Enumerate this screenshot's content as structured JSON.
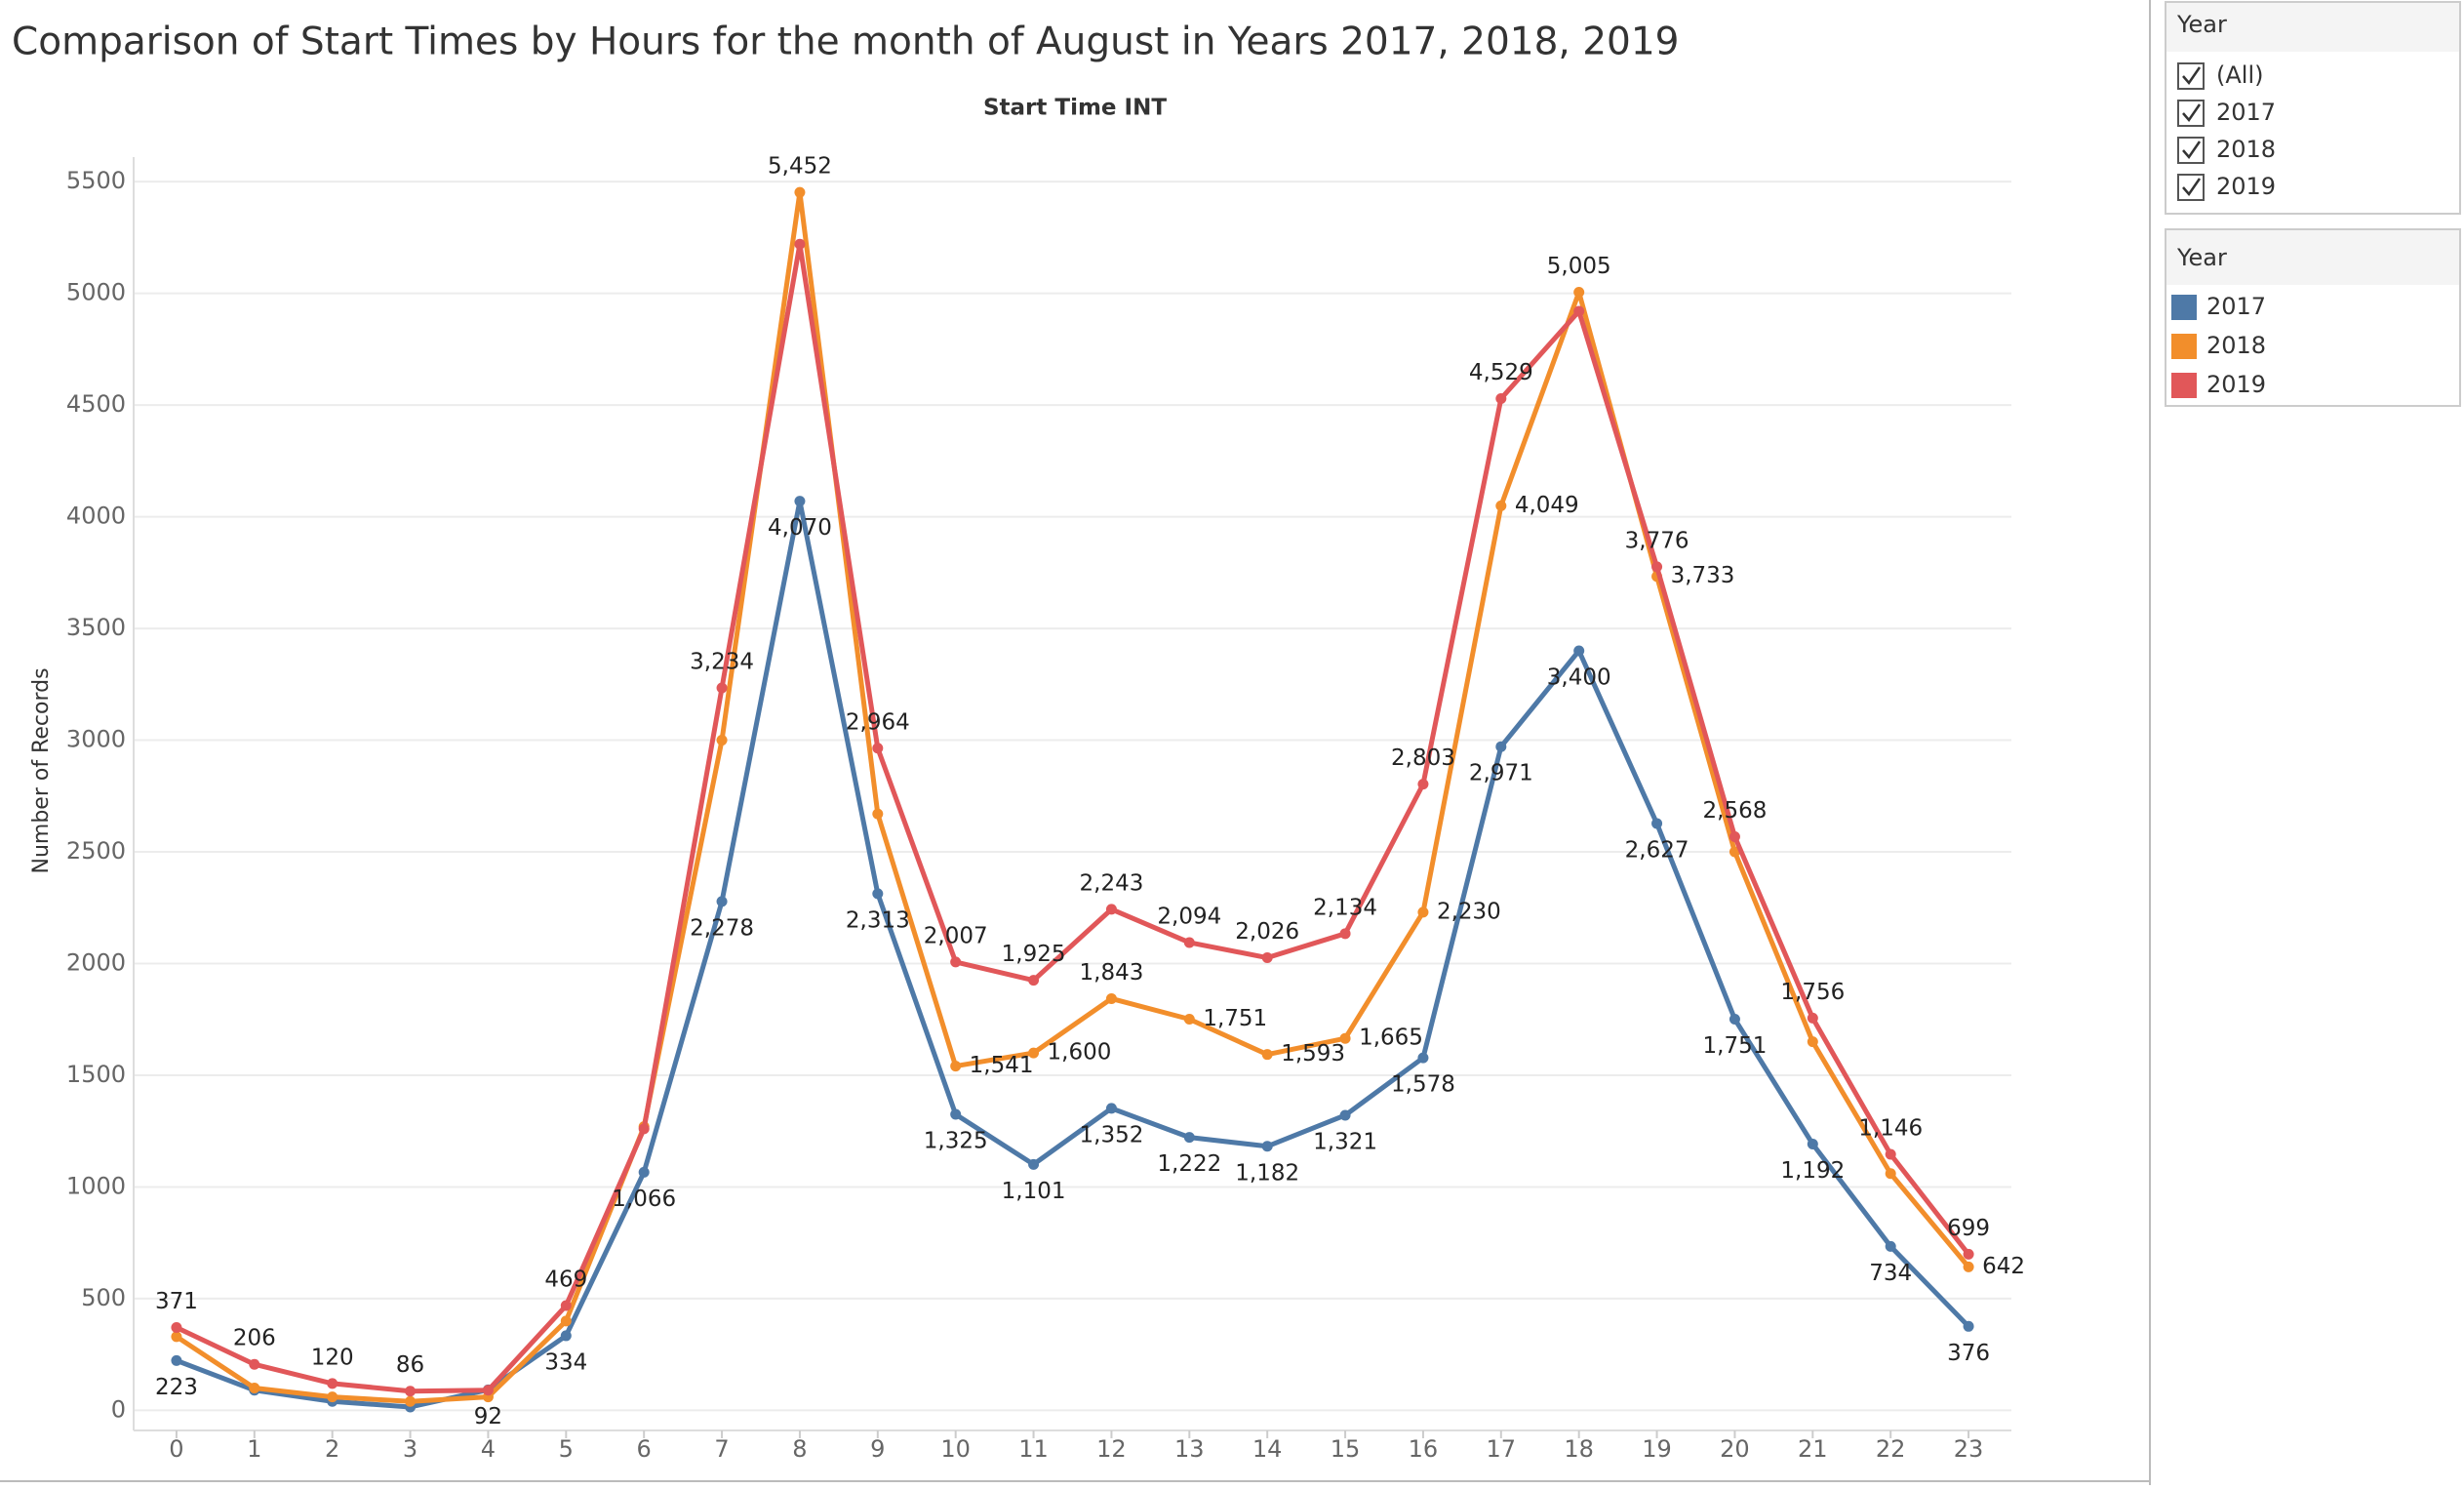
{
  "chart_data": {
    "type": "line",
    "title": "Comparison of Start Times by Hours for the month of August in Years  2017, 2018, 2019",
    "x_label": "Start Time INT",
    "y_label": "Number of Records",
    "x": [
      0,
      1,
      2,
      3,
      4,
      5,
      6,
      7,
      8,
      9,
      10,
      11,
      12,
      13,
      14,
      15,
      16,
      17,
      18,
      19,
      20,
      21,
      22,
      23
    ],
    "xlim": [
      -0.55,
      23.55
    ],
    "xticks": [
      0,
      1,
      2,
      3,
      4,
      5,
      6,
      7,
      8,
      9,
      10,
      11,
      12,
      13,
      14,
      15,
      16,
      17,
      18,
      19,
      20,
      21,
      22,
      23
    ],
    "ylim": [
      -90,
      5610
    ],
    "yticks": [
      0,
      500,
      1000,
      1500,
      2000,
      2500,
      3000,
      3500,
      4000,
      4500,
      5000,
      5500
    ],
    "grid": true,
    "legend_title": "Year",
    "series": [
      {
        "name": "2017",
        "color": "#4e79a7",
        "values": [
          223,
          90,
          40,
          15,
          92,
          334,
          1066,
          2278,
          4070,
          2313,
          1325,
          1101,
          1352,
          1222,
          1182,
          1321,
          1578,
          2971,
          3400,
          2627,
          1751,
          1192,
          734,
          376
        ],
        "value_labels": [
          "223",
          null,
          null,
          null,
          "92",
          "334",
          "1,066",
          "2,278",
          "4,070",
          "2,313",
          "1,325",
          "1,101",
          "1,352",
          "1,222",
          "1,182",
          "1,321",
          "1,578",
          "2,971",
          "3,400",
          "2,627",
          "1,751",
          "1,192",
          "734",
          "376"
        ]
      },
      {
        "name": "2018",
        "color": "#f28e2b",
        "values": [
          330,
          100,
          60,
          40,
          60,
          400,
          1270,
          3000,
          5452,
          2670,
          1541,
          1600,
          1843,
          1751,
          1593,
          1665,
          2230,
          4049,
          5005,
          3733,
          2500,
          1650,
          1060,
          642
        ],
        "value_labels": [
          null,
          null,
          null,
          null,
          null,
          null,
          null,
          null,
          "5,452",
          null,
          "1,541",
          "1,600",
          "1,843",
          "1,751",
          "1,593",
          "1,665",
          "2,230",
          "4,049",
          "5,005",
          "3,733",
          null,
          null,
          null,
          "642"
        ]
      },
      {
        "name": "2019",
        "color": "#e15759",
        "values": [
          371,
          206,
          120,
          86,
          90,
          469,
          1260,
          3234,
          5220,
          2964,
          2007,
          1925,
          2243,
          2094,
          2026,
          2134,
          2803,
          4529,
          4920,
          3776,
          2568,
          1756,
          1146,
          699
        ],
        "value_labels": [
          "371",
          "206",
          "120",
          "86",
          null,
          "469",
          null,
          "3,234",
          null,
          "2,964",
          "2,007",
          "1,925",
          "2,243",
          "2,094",
          "2,026",
          "2,134",
          "2,803",
          "4,529",
          null,
          "3,776",
          "2,568",
          "1,756",
          "1,146",
          "699"
        ]
      }
    ]
  },
  "filter": {
    "title": "Year",
    "items": [
      "(All)",
      "2017",
      "2018",
      "2019"
    ]
  }
}
